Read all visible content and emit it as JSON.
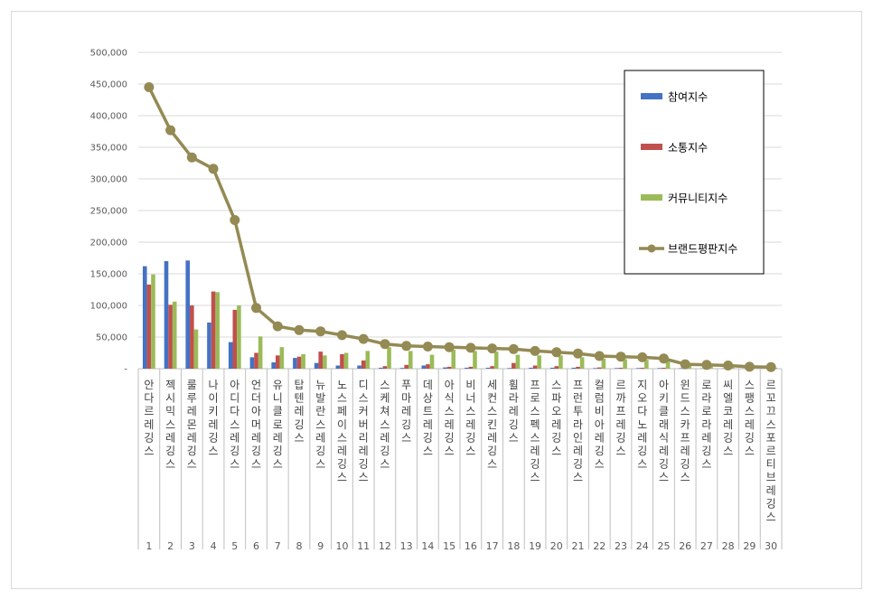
{
  "chart_data": {
    "type": "bar",
    "title": "",
    "xlabel": "",
    "ylabel": "",
    "ylim": [
      0,
      500000
    ],
    "yticks": [
      "-",
      "50,000",
      "100,000",
      "150,000",
      "200,000",
      "250,000",
      "300,000",
      "350,000",
      "400,000",
      "450,000",
      "500,000"
    ],
    "grid": true,
    "legend_position": "top-right",
    "ranks": [
      "1",
      "2",
      "3",
      "4",
      "5",
      "6",
      "7",
      "8",
      "9",
      "10",
      "11",
      "12",
      "13",
      "14",
      "15",
      "16",
      "17",
      "18",
      "19",
      "20",
      "21",
      "22",
      "23",
      "24",
      "25",
      "26",
      "27",
      "28",
      "29",
      "30"
    ],
    "categories": [
      "안다르레깅스",
      "젝시믹스레깅스",
      "룰루레몬레깅스",
      "나이키레깅스",
      "아디다스레깅스",
      "언더아머레깅스",
      "유니클로레깅스",
      "탑텐레깅스",
      "뉴발란스레깅스",
      "노스페이스레깅스",
      "디스커버리레깅스",
      "스케쳐스레깅스",
      "푸마레깅스",
      "데상트레깅스",
      "아식스레깅스",
      "비너스레깅스",
      "세컨스킨레깅스",
      "휠라레깅스",
      "프로스펙스레깅스",
      "스파오레깅스",
      "프런투라인레깅스",
      "컬럼비아레깅스",
      "르까프레깅스",
      "지오다노레깅스",
      "아키클래식레깅스",
      "윈드스카프레깅스",
      "로라로라레깅스",
      "씨엘코레깅스",
      "스팽스레깅스",
      "르꼬끄스포르티브레깅스"
    ],
    "series": [
      {
        "name": "참여지수",
        "kind": "bar",
        "color": "#4472c4",
        "values": [
          162000,
          170000,
          171000,
          73000,
          42000,
          18000,
          10000,
          17000,
          9000,
          5000,
          5000,
          1500,
          1200,
          5000,
          2000,
          1500,
          1500,
          1000,
          1500,
          1500,
          1500,
          1000,
          1000,
          1000,
          1000,
          800,
          500,
          500,
          300,
          300
        ]
      },
      {
        "name": "소통지수",
        "kind": "bar",
        "color": "#c0504d",
        "values": [
          133000,
          101000,
          100000,
          122000,
          93000,
          25000,
          21000,
          19000,
          27000,
          23000,
          13000,
          4000,
          6000,
          7000,
          3000,
          3000,
          4000,
          9000,
          5000,
          4000,
          3000,
          2000,
          1500,
          1500,
          1500,
          1000,
          800,
          800,
          500,
          500
        ]
      },
      {
        "name": "커뮤니티지수",
        "kind": "bar",
        "color": "#9bbb59",
        "values": [
          149000,
          106000,
          62000,
          121000,
          100000,
          51000,
          34000,
          23000,
          21000,
          25000,
          28000,
          34000,
          28000,
          22000,
          30000,
          28000,
          27000,
          22000,
          21000,
          21000,
          18000,
          16000,
          15000,
          14000,
          14000,
          6000,
          5000,
          4000,
          2000,
          1500
        ]
      },
      {
        "name": "브랜드평판지수",
        "kind": "line",
        "color": "#948a54",
        "values": [
          445000,
          377000,
          334000,
          316000,
          235000,
          96000,
          67000,
          61000,
          59000,
          53000,
          47000,
          39000,
          36000,
          35000,
          34000,
          33000,
          32000,
          31000,
          28000,
          26000,
          24000,
          20000,
          19000,
          18000,
          16000,
          7000,
          6000,
          5000,
          3000,
          2500
        ]
      }
    ]
  }
}
